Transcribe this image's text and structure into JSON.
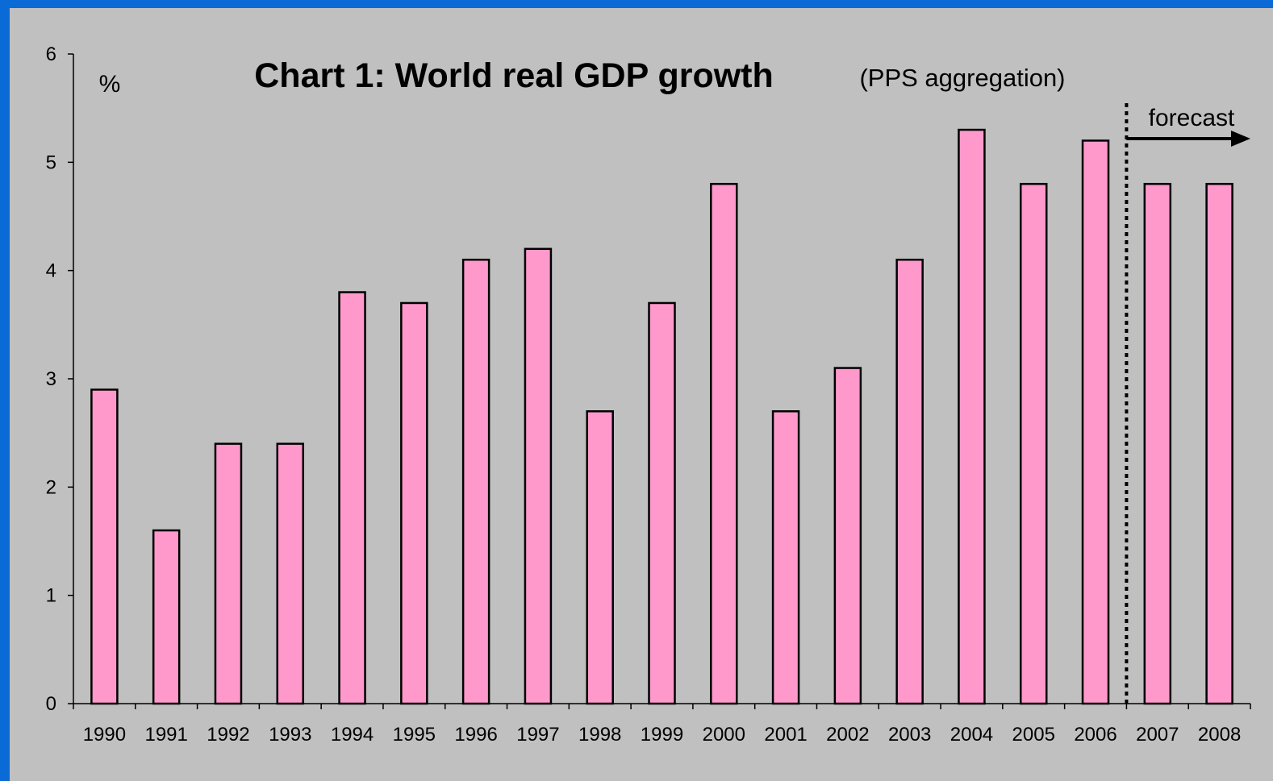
{
  "colors": {
    "frame": "#0a6bd6",
    "background": "#c0c0c0",
    "bar_fill": "#ff99cc",
    "bar_stroke": "#000000"
  },
  "chart_data": {
    "type": "bar",
    "title": "Chart 1: World real GDP growth",
    "subtitle": "(PPS aggregation)",
    "ylabel": "%",
    "xlabel": "",
    "categories": [
      "1990",
      "1991",
      "1992",
      "1993",
      "1994",
      "1995",
      "1996",
      "1997",
      "1998",
      "1999",
      "2000",
      "2001",
      "2002",
      "2003",
      "2004",
      "2005",
      "2006",
      "2007",
      "2008"
    ],
    "values": [
      2.9,
      1.6,
      2.4,
      2.4,
      3.8,
      3.7,
      4.1,
      4.2,
      2.7,
      3.7,
      4.8,
      2.7,
      3.1,
      4.1,
      5.3,
      4.8,
      5.2,
      4.8,
      4.8
    ],
    "ylim": [
      0,
      6
    ],
    "yticks": [
      "0",
      "1",
      "2",
      "3",
      "4",
      "5",
      "6"
    ],
    "grid": false,
    "annotation": {
      "text": "forecast",
      "starts_after": "2006"
    }
  }
}
